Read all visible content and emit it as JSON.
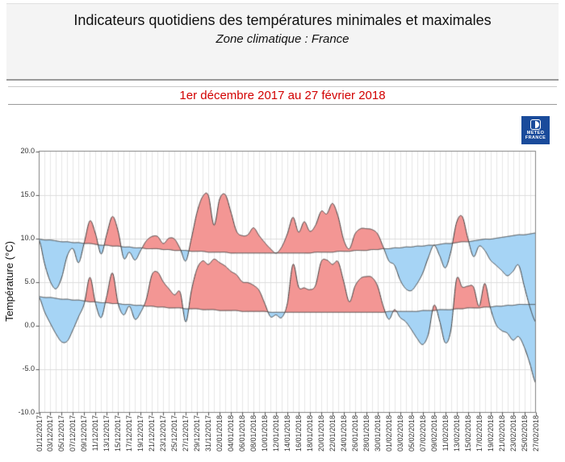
{
  "header": {
    "title": "Indicateurs quotidiens des températures minimales et maximales",
    "subtitle": "Zone climatique : France"
  },
  "period": {
    "label": "1er décembre 2017 au 27 février 2018"
  },
  "logo": {
    "line1": "METEO",
    "line2": "FRANCE",
    "bg_color": "#1a4b9b"
  },
  "chart_data": {
    "type": "area",
    "title": "Indicateurs quotidiens des températures minimales et maximales",
    "subtitle": "Zone climatique : France",
    "xlabel": "",
    "ylabel": "Température (°C)",
    "ylim": [
      -10,
      20
    ],
    "y_tick_values": [
      20,
      15,
      10,
      5,
      0,
      -5,
      -10
    ],
    "y_tick_labels": [
      "20.0",
      "15.0",
      "10.0",
      "5.0",
      "0.0",
      "-5.0",
      "-10.0"
    ],
    "x_tick_interval_days": 2,
    "x_tick_labels": [
      "01/12/2017",
      "03/12/2017",
      "05/12/2017",
      "07/12/2017",
      "09/12/2017",
      "11/12/2017",
      "13/12/2017",
      "15/12/2017",
      "17/12/2017",
      "19/12/2017",
      "21/12/2017",
      "23/12/2017",
      "25/12/2017",
      "27/12/2017",
      "29/12/2017",
      "31/12/2017",
      "02/01/2018",
      "04/01/2018",
      "06/01/2018",
      "08/01/2018",
      "10/01/2018",
      "12/01/2018",
      "14/01/2018",
      "16/01/2018",
      "18/01/2018",
      "20/01/2018",
      "22/01/2018",
      "24/01/2018",
      "26/01/2018",
      "28/01/2018",
      "30/01/2018",
      "01/02/2018",
      "03/02/2018",
      "05/02/2018",
      "07/02/2018",
      "09/02/2018",
      "11/02/2018",
      "13/02/2018",
      "15/02/2018",
      "17/02/2018",
      "19/02/2018",
      "21/02/2018",
      "23/02/2018",
      "25/02/2018",
      "27/02/2018"
    ],
    "days": 89,
    "grid": true,
    "legend": "none",
    "colors": {
      "above_normal_fill": "#f39694",
      "below_normal_fill": "#a6d4f5",
      "curve_line": "#3a3a3a",
      "grid_vertical": "#e6e6e6",
      "grid_horizontal": "#dcdcdc",
      "plot_border": "#808080",
      "period_text": "#d20000",
      "logo_blue": "#1a4b9b"
    },
    "series": [
      {
        "name": "tmax_daily",
        "values": [
          9.8,
          7.0,
          5.0,
          4.2,
          5.5,
          8.0,
          8.8,
          7.2,
          9.5,
          12.0,
          10.5,
          8.2,
          10.5,
          12.5,
          10.8,
          7.7,
          8.4,
          7.5,
          8.6,
          9.7,
          10.2,
          10.2,
          9.4,
          10.0,
          9.9,
          8.8,
          7.4,
          10.0,
          13.0,
          14.8,
          14.9,
          11.5,
          14.5,
          15.0,
          13.0,
          10.8,
          10.3,
          10.4,
          11.2,
          10.3,
          9.5,
          8.8,
          8.3,
          9.0,
          10.5,
          12.4,
          10.7,
          11.9,
          10.8,
          11.5,
          13.1,
          12.8,
          14.0,
          12.5,
          9.8,
          8.8,
          10.5,
          11.1,
          11.1,
          11.0,
          10.5,
          9.0,
          7.4,
          6.9,
          5.2,
          4.2,
          4.0,
          4.8,
          6.0,
          7.8,
          9.2,
          8.0,
          6.6,
          8.5,
          11.8,
          12.5,
          10.0,
          7.9,
          9.1,
          8.6,
          7.5,
          6.9,
          6.3,
          5.7,
          6.2,
          6.9,
          4.5,
          2.1,
          0.4
        ]
      },
      {
        "name": "tmin_daily",
        "values": [
          3.2,
          1.5,
          0.2,
          -1.0,
          -1.9,
          -1.8,
          -0.5,
          1.0,
          2.5,
          5.5,
          2.5,
          0.9,
          3.4,
          6.0,
          2.5,
          1.2,
          2.2,
          0.7,
          1.5,
          3.0,
          5.8,
          6.1,
          5.0,
          4.2,
          3.5,
          3.8,
          0.4,
          4.0,
          6.5,
          7.4,
          7.0,
          7.6,
          7.2,
          6.8,
          6.2,
          5.8,
          5.0,
          4.9,
          4.6,
          4.0,
          2.5,
          1.0,
          1.2,
          0.9,
          2.5,
          7.0,
          4.4,
          4.3,
          4.1,
          4.6,
          7.3,
          7.5,
          7.0,
          7.3,
          5.0,
          2.7,
          4.5,
          5.4,
          5.6,
          5.5,
          4.5,
          2.2,
          0.7,
          1.8,
          0.9,
          0.4,
          -0.5,
          -1.5,
          -2.2,
          -1.0,
          2.3,
          0.5,
          -2.0,
          -0.5,
          5.3,
          4.4,
          4.5,
          4.4,
          2.2,
          4.8,
          2.0,
          0.1,
          -0.6,
          -0.9,
          -1.7,
          -1.3,
          -2.5,
          -4.4,
          -6.6
        ]
      },
      {
        "name": "tmax_normal",
        "values": [
          9.9,
          9.8,
          9.8,
          9.7,
          9.6,
          9.6,
          9.5,
          9.5,
          9.4,
          9.4,
          9.3,
          9.2,
          9.2,
          9.1,
          9.1,
          9.0,
          9.0,
          8.9,
          8.9,
          8.8,
          8.8,
          8.8,
          8.7,
          8.7,
          8.6,
          8.6,
          8.6,
          8.5,
          8.5,
          8.5,
          8.4,
          8.4,
          8.4,
          8.4,
          8.3,
          8.3,
          8.3,
          8.3,
          8.3,
          8.3,
          8.3,
          8.3,
          8.3,
          8.3,
          8.3,
          8.3,
          8.3,
          8.3,
          8.3,
          8.4,
          8.4,
          8.4,
          8.4,
          8.5,
          8.5,
          8.5,
          8.6,
          8.6,
          8.6,
          8.7,
          8.7,
          8.8,
          8.8,
          8.9,
          8.9,
          9.0,
          9.0,
          9.1,
          9.1,
          9.2,
          9.2,
          9.3,
          9.4,
          9.4,
          9.5,
          9.6,
          9.6,
          9.7,
          9.8,
          9.9,
          9.9,
          10.0,
          10.1,
          10.2,
          10.3,
          10.4,
          10.4,
          10.5,
          10.6
        ]
      },
      {
        "name": "tmin_normal",
        "values": [
          3.3,
          3.2,
          3.2,
          3.1,
          3.0,
          3.0,
          2.9,
          2.9,
          2.8,
          2.7,
          2.7,
          2.6,
          2.6,
          2.5,
          2.5,
          2.4,
          2.4,
          2.3,
          2.3,
          2.2,
          2.2,
          2.1,
          2.1,
          2.0,
          2.0,
          2.0,
          1.9,
          1.9,
          1.9,
          1.8,
          1.8,
          1.8,
          1.7,
          1.7,
          1.7,
          1.7,
          1.6,
          1.6,
          1.6,
          1.6,
          1.6,
          1.5,
          1.5,
          1.5,
          1.5,
          1.5,
          1.5,
          1.5,
          1.5,
          1.5,
          1.5,
          1.5,
          1.5,
          1.5,
          1.5,
          1.5,
          1.5,
          1.5,
          1.5,
          1.5,
          1.5,
          1.5,
          1.6,
          1.6,
          1.6,
          1.6,
          1.6,
          1.6,
          1.7,
          1.7,
          1.7,
          1.8,
          1.8,
          1.8,
          1.9,
          1.9,
          2.0,
          2.0,
          2.0,
          2.1,
          2.1,
          2.2,
          2.2,
          2.3,
          2.3,
          2.4,
          2.4,
          2.4,
          2.4
        ]
      }
    ]
  }
}
